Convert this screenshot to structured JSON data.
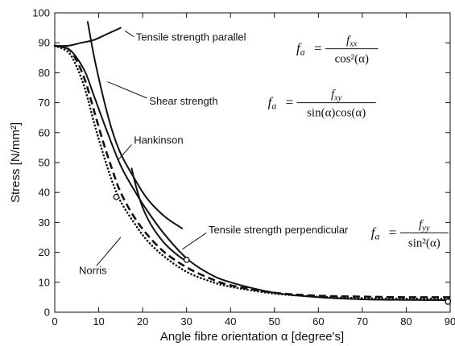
{
  "chart_data": {
    "type": "line",
    "xlabel": "Angle fibre orientation α [degree's]",
    "ylabel": "Stress [N/mm²]",
    "xlim": [
      0,
      90
    ],
    "ylim": [
      0,
      100
    ],
    "x_ticks": [
      "0",
      "10",
      "20",
      "30",
      "40",
      "50",
      "60",
      "70",
      "80",
      "90"
    ],
    "y_ticks": [
      "0",
      "10",
      "20",
      "30",
      "40",
      "50",
      "60",
      "70",
      "80",
      "90",
      "100"
    ],
    "grid": false,
    "legend": "none",
    "series": [
      {
        "name": "Tensile strength parallel",
        "style": "solid",
        "x": [
          0,
          3,
          6,
          9,
          12,
          15
        ],
        "y": [
          89,
          89,
          90,
          91,
          93,
          95
        ]
      },
      {
        "name": "Shear strength",
        "style": "solid",
        "x": [
          7.5,
          9,
          11,
          13,
          15,
          18,
          21,
          25,
          29
        ],
        "y": [
          97,
          85,
          72,
          61,
          53,
          45,
          38,
          32,
          28
        ]
      },
      {
        "name": "Hankinson",
        "style": "solid",
        "x": [
          0,
          3,
          5,
          7,
          9,
          12,
          15,
          18,
          21,
          25,
          30,
          35,
          40,
          50,
          60,
          70,
          80,
          90
        ],
        "y": [
          89,
          88,
          85,
          80,
          72,
          60,
          49,
          41,
          34,
          26,
          18,
          13,
          10,
          6.5,
          5,
          4.3,
          4.1,
          4
        ]
      },
      {
        "name": "Tensile strength perpendicular",
        "style": "solid",
        "x": [
          17.5,
          18.5,
          20,
          22,
          25,
          28,
          30
        ],
        "y": [
          48,
          42,
          35,
          29,
          23,
          19,
          17
        ]
      },
      {
        "name": "",
        "style": "dashed",
        "x": [
          0,
          3,
          5,
          7,
          9,
          11,
          13,
          15,
          18,
          21,
          25,
          30,
          35,
          40,
          50,
          60,
          70,
          80,
          90
        ],
        "y": [
          89,
          88,
          84,
          77,
          67,
          57,
          48,
          40,
          32,
          26,
          20,
          15,
          11.5,
          9,
          6.5,
          5.5,
          5.2,
          5,
          5
        ]
      },
      {
        "name": "Norris",
        "style": "dotted",
        "x": [
          0,
          3,
          5,
          7,
          9,
          11,
          13,
          15,
          18,
          21,
          25,
          30,
          35,
          40,
          50,
          60,
          70,
          80,
          90
        ],
        "y": [
          89,
          87,
          82,
          74,
          63,
          53,
          44,
          37,
          30,
          24,
          18.5,
          13.5,
          10.5,
          8.5,
          6.2,
          5.2,
          4.7,
          4.5,
          4.5
        ]
      }
    ],
    "markers": [
      {
        "x": 14,
        "y": 38.5
      },
      {
        "x": 30,
        "y": 17.5
      },
      {
        "x": 89.5,
        "y": 3.5
      }
    ],
    "annotations": [
      {
        "key": "tensile_parallel",
        "text": "Tensile strength parallel",
        "x": 18.5,
        "y": 92,
        "lead": [
          [
            18,
            92
          ],
          [
            16,
            94
          ]
        ]
      },
      {
        "key": "shear",
        "text": "Shear strength",
        "x": 21.5,
        "y": 70.5,
        "lead": [
          [
            21,
            71.5
          ],
          [
            12,
            77
          ]
        ]
      },
      {
        "key": "hankinson",
        "text": "Hankinson",
        "x": 18,
        "y": 57.5,
        "lead": [
          [
            17.5,
            56
          ],
          [
            14.5,
            51
          ]
        ]
      },
      {
        "key": "tensile_perpendicular",
        "text": "Tensile strength perpendicular",
        "x": 35,
        "y": 27.5,
        "lead": [
          [
            34.5,
            26.5
          ],
          [
            29,
            21
          ]
        ]
      },
      {
        "key": "norris",
        "text": "Norris",
        "x": 5.5,
        "y": 14,
        "lead": [
          [
            9.5,
            15.5
          ],
          [
            15,
            25
          ]
        ]
      }
    ],
    "formulas": [
      {
        "key": "f1",
        "lhs": "f",
        "lhs_sub": "a",
        "num": "f",
        "num_sub": "xx",
        "den": "cos²(α)",
        "x": 55,
        "y": 88,
        "w": 12
      },
      {
        "key": "f2",
        "lhs": "f",
        "lhs_sub": "a",
        "num": "f",
        "num_sub": "xy",
        "den": "sin(α)cos(α)",
        "x": 48.5,
        "y": 70,
        "w": 18
      },
      {
        "key": "f3",
        "lhs": "f",
        "lhs_sub": "a",
        "num": "f",
        "num_sub": "yy",
        "den": "sin²(α)",
        "x": 72,
        "y": 26.5,
        "w": 11
      }
    ]
  }
}
